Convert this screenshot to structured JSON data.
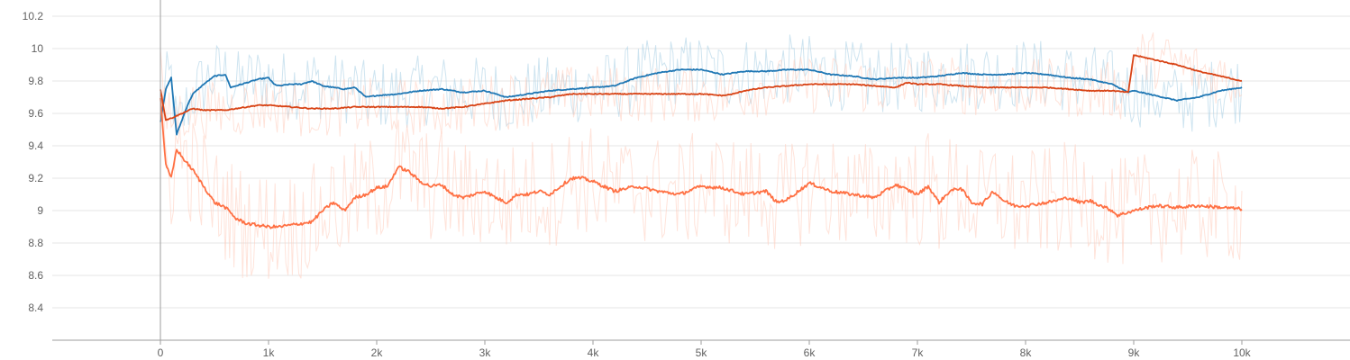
{
  "chart_data": {
    "type": "line",
    "title": "",
    "xlabel": "",
    "ylabel": "",
    "xlim": [
      -1000,
      11000
    ],
    "ylim": [
      8.2,
      10.3
    ],
    "grid": true,
    "x_ticks": [
      0,
      1000,
      2000,
      3000,
      4000,
      5000,
      6000,
      7000,
      8000,
      9000,
      10000
    ],
    "x_tick_labels": [
      "0",
      "1k",
      "2k",
      "3k",
      "4k",
      "5k",
      "6k",
      "7k",
      "8k",
      "9k",
      "10k"
    ],
    "y_ticks": [
      8.4,
      8.6,
      8.8,
      9.0,
      9.2,
      9.4,
      9.6,
      9.8,
      10.0,
      10.2
    ],
    "y_tick_labels": [
      "8.4",
      "8.6",
      "8.8",
      "9",
      "9.2",
      "9.4",
      "9.6",
      "9.8",
      "10",
      "10.2"
    ],
    "series": [
      {
        "color": "#1f77b4",
        "raw_color": "#a6cee3",
        "role": "smoothed",
        "x": [
          0,
          50,
          100,
          150,
          200,
          250,
          300,
          400,
          500,
          600,
          650,
          700,
          750,
          800,
          900,
          1000,
          1050,
          1100,
          1200,
          1300,
          1400,
          1500,
          1600,
          1700,
          1800,
          1900,
          2000,
          2200,
          2400,
          2600,
          2800,
          3000,
          3200,
          3400,
          3600,
          3800,
          4000,
          4200,
          4400,
          4600,
          4800,
          5000,
          5200,
          5400,
          5600,
          5800,
          6000,
          6200,
          6400,
          6600,
          6800,
          7000,
          7200,
          7400,
          7600,
          7800,
          8000,
          8200,
          8400,
          8600,
          8800,
          8950,
          9000,
          9200,
          9400,
          9600,
          9800,
          10000
        ],
        "y": [
          9.55,
          9.75,
          9.82,
          9.47,
          9.56,
          9.65,
          9.72,
          9.78,
          9.83,
          9.84,
          9.76,
          9.77,
          9.78,
          9.79,
          9.81,
          9.82,
          9.78,
          9.77,
          9.78,
          9.78,
          9.8,
          9.77,
          9.76,
          9.75,
          9.76,
          9.7,
          9.71,
          9.72,
          9.74,
          9.75,
          9.73,
          9.74,
          9.7,
          9.72,
          9.74,
          9.75,
          9.76,
          9.77,
          9.82,
          9.85,
          9.87,
          9.87,
          9.84,
          9.86,
          9.86,
          9.87,
          9.87,
          9.84,
          9.83,
          9.81,
          9.82,
          9.82,
          9.83,
          9.85,
          9.84,
          9.84,
          9.85,
          9.84,
          9.82,
          9.81,
          9.78,
          9.73,
          9.74,
          9.71,
          9.68,
          9.7,
          9.74,
          9.76
        ]
      },
      {
        "color": "#d84315",
        "raw_color": "#ffccbc",
        "role": "smoothed",
        "x": [
          0,
          50,
          100,
          200,
          300,
          400,
          500,
          600,
          700,
          800,
          900,
          1000,
          1200,
          1400,
          1600,
          1800,
          2000,
          2200,
          2400,
          2600,
          2800,
          3000,
          3200,
          3400,
          3600,
          3800,
          4000,
          4200,
          4400,
          4600,
          4800,
          5000,
          5200,
          5300,
          5400,
          5600,
          5800,
          6000,
          6200,
          6400,
          6600,
          6800,
          6900,
          7000,
          7200,
          7400,
          7600,
          7800,
          8000,
          8200,
          8400,
          8600,
          8800,
          8950,
          9000,
          9200,
          9400,
          9600,
          9800,
          10000
        ],
        "y": [
          9.75,
          9.56,
          9.57,
          9.6,
          9.63,
          9.62,
          9.62,
          9.62,
          9.63,
          9.64,
          9.65,
          9.65,
          9.64,
          9.63,
          9.63,
          9.64,
          9.64,
          9.64,
          9.64,
          9.63,
          9.64,
          9.66,
          9.68,
          9.69,
          9.7,
          9.72,
          9.72,
          9.72,
          9.72,
          9.72,
          9.72,
          9.72,
          9.71,
          9.72,
          9.74,
          9.76,
          9.77,
          9.78,
          9.78,
          9.78,
          9.77,
          9.76,
          9.79,
          9.78,
          9.78,
          9.77,
          9.76,
          9.76,
          9.76,
          9.76,
          9.75,
          9.74,
          9.74,
          9.73,
          9.96,
          9.93,
          9.9,
          9.86,
          9.83,
          9.8
        ]
      },
      {
        "color": "#ff7043",
        "raw_color": "#ffccbc",
        "role": "smoothed",
        "x": [
          0,
          50,
          100,
          150,
          200,
          300,
          400,
          500,
          600,
          700,
          800,
          900,
          1000,
          1100,
          1200,
          1300,
          1400,
          1500,
          1600,
          1700,
          1800,
          1900,
          2000,
          2100,
          2200,
          2300,
          2400,
          2500,
          2600,
          2700,
          2800,
          2900,
          3000,
          3100,
          3200,
          3300,
          3400,
          3500,
          3600,
          3700,
          3800,
          3900,
          4000,
          4200,
          4400,
          4600,
          4800,
          5000,
          5200,
          5400,
          5600,
          5700,
          5800,
          6000,
          6200,
          6400,
          6600,
          6800,
          7000,
          7100,
          7200,
          7300,
          7400,
          7500,
          7600,
          7700,
          7800,
          7900,
          8000,
          8200,
          8400,
          8500,
          8600,
          8800,
          8850,
          9000,
          9200,
          9400,
          9600,
          9800,
          10000
        ],
        "y": [
          9.7,
          9.28,
          9.2,
          9.38,
          9.33,
          9.25,
          9.15,
          9.05,
          9.02,
          8.95,
          8.92,
          8.91,
          8.9,
          8.9,
          8.91,
          8.92,
          8.93,
          9.0,
          9.05,
          9.0,
          9.08,
          9.1,
          9.14,
          9.15,
          9.27,
          9.24,
          9.18,
          9.15,
          9.16,
          9.1,
          9.08,
          9.1,
          9.12,
          9.08,
          9.05,
          9.1,
          9.1,
          9.12,
          9.1,
          9.15,
          9.2,
          9.2,
          9.18,
          9.12,
          9.15,
          9.12,
          9.1,
          9.15,
          9.14,
          9.1,
          9.12,
          9.05,
          9.07,
          9.17,
          9.12,
          9.1,
          9.08,
          9.16,
          9.1,
          9.15,
          9.05,
          9.12,
          9.14,
          9.05,
          9.04,
          9.12,
          9.06,
          9.03,
          9.03,
          9.05,
          9.08,
          9.05,
          9.06,
          9.0,
          8.97,
          9.0,
          9.03,
          9.02,
          9.03,
          9.02,
          9.01
        ]
      }
    ]
  }
}
